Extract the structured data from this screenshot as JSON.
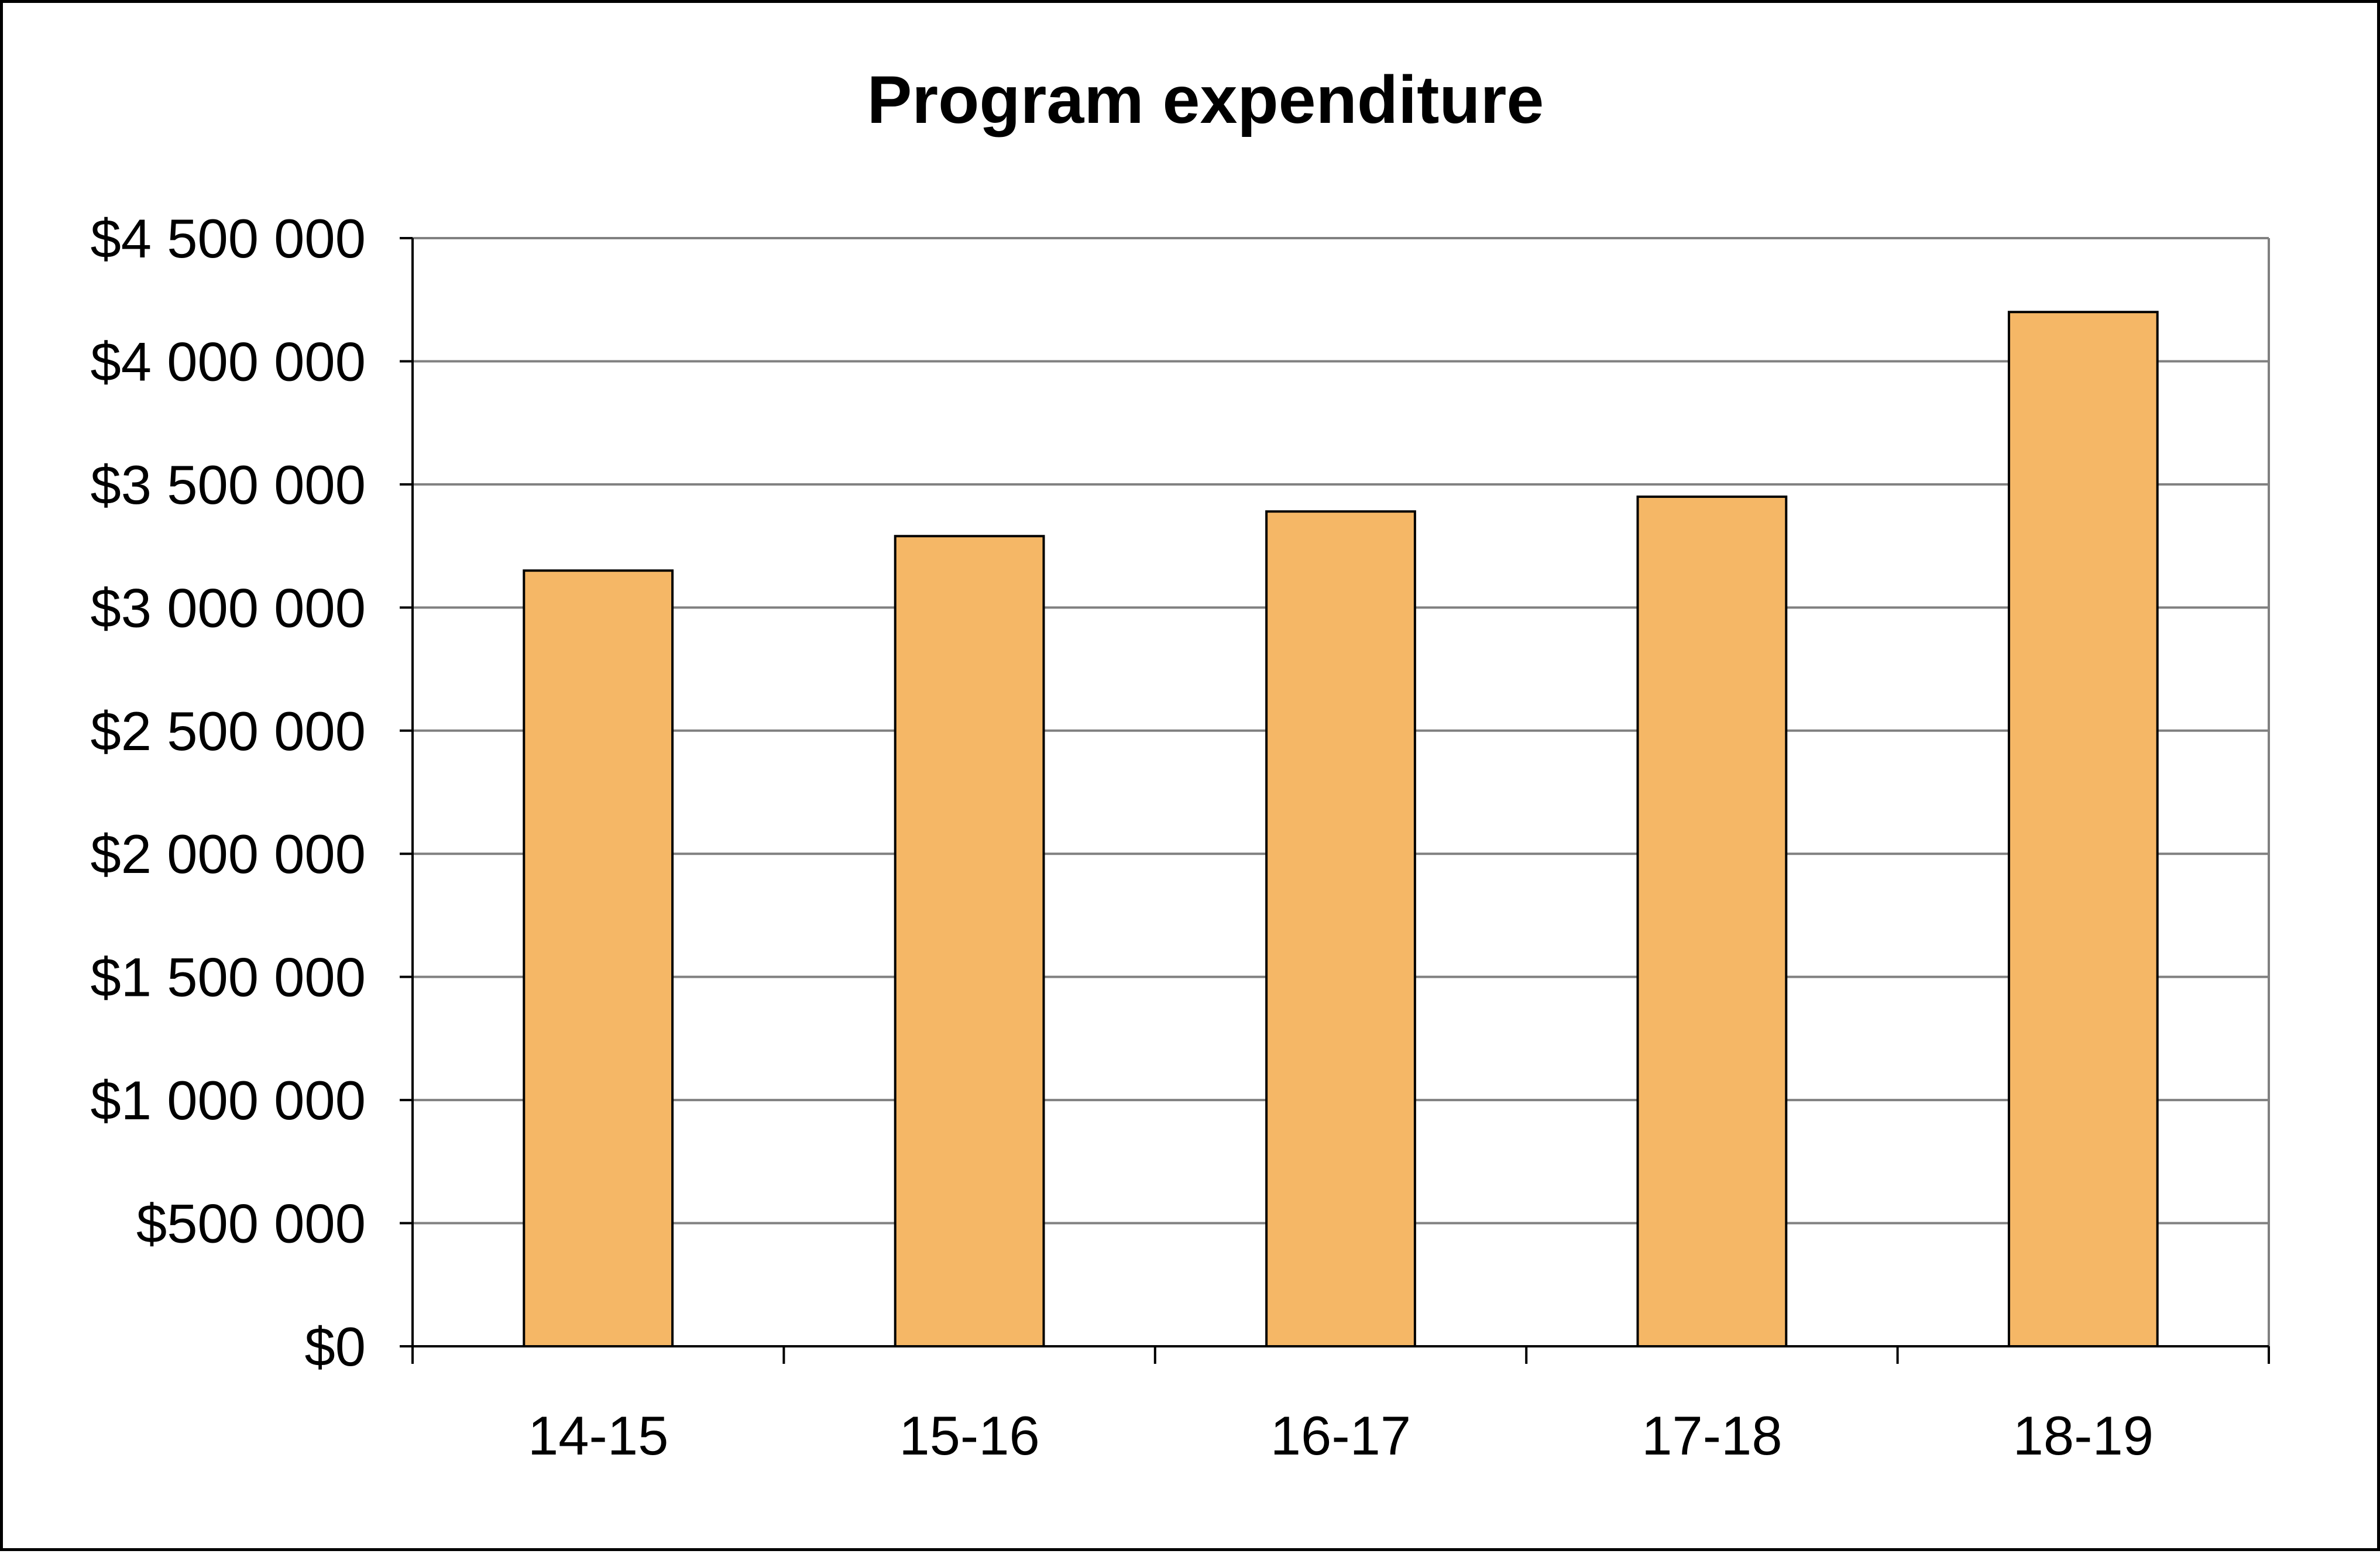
{
  "chart_data": {
    "type": "bar",
    "title": "Program expenditure",
    "xlabel": "",
    "ylabel": "",
    "categories": [
      "14-15",
      "15-16",
      "16-17",
      "17-18",
      "18-19"
    ],
    "series": [
      {
        "values": [
          3150000,
          3290000,
          3390000,
          3450000,
          4200000
        ]
      }
    ],
    "ylim": [
      0,
      4500000
    ],
    "yticks": [
      0,
      500000,
      1000000,
      1500000,
      2000000,
      2500000,
      3000000,
      3500000,
      4000000,
      4500000
    ],
    "ytick_labels": [
      "$0",
      "$500 000",
      "$1 000 000",
      "$1 500 000",
      "$2 000 000",
      "$2 500 000",
      "$3 000 000",
      "$3 500 000",
      "$4 000 000",
      "$4 500 000"
    ],
    "grid": true,
    "legend": "none",
    "colors": {
      "bar": "#F5B766",
      "bar_outline": "#000000",
      "grid": "#808080"
    }
  }
}
